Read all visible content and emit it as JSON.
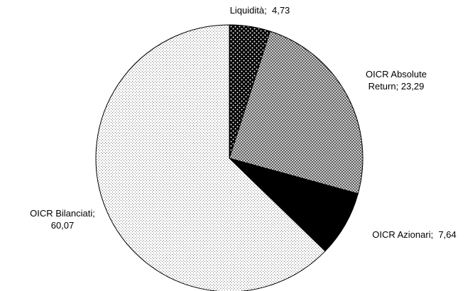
{
  "chart_data": {
    "type": "pie",
    "categories": [
      "Liquidità",
      "OICR Absolute Return",
      "OICR Azionari",
      "OICR Bilanciati"
    ],
    "values": [
      4.73,
      23.29,
      7.64,
      60.07
    ],
    "value_labels": [
      "4,73",
      "23,29",
      "7,64",
      "60,07"
    ],
    "label_separator": ";",
    "colors": [
      "#000000",
      "#8c8c8c",
      "#000000",
      "#e6e6e6"
    ],
    "patterns": [
      "dots-dark",
      "crosshatch",
      "solid",
      "dots-light"
    ]
  }
}
